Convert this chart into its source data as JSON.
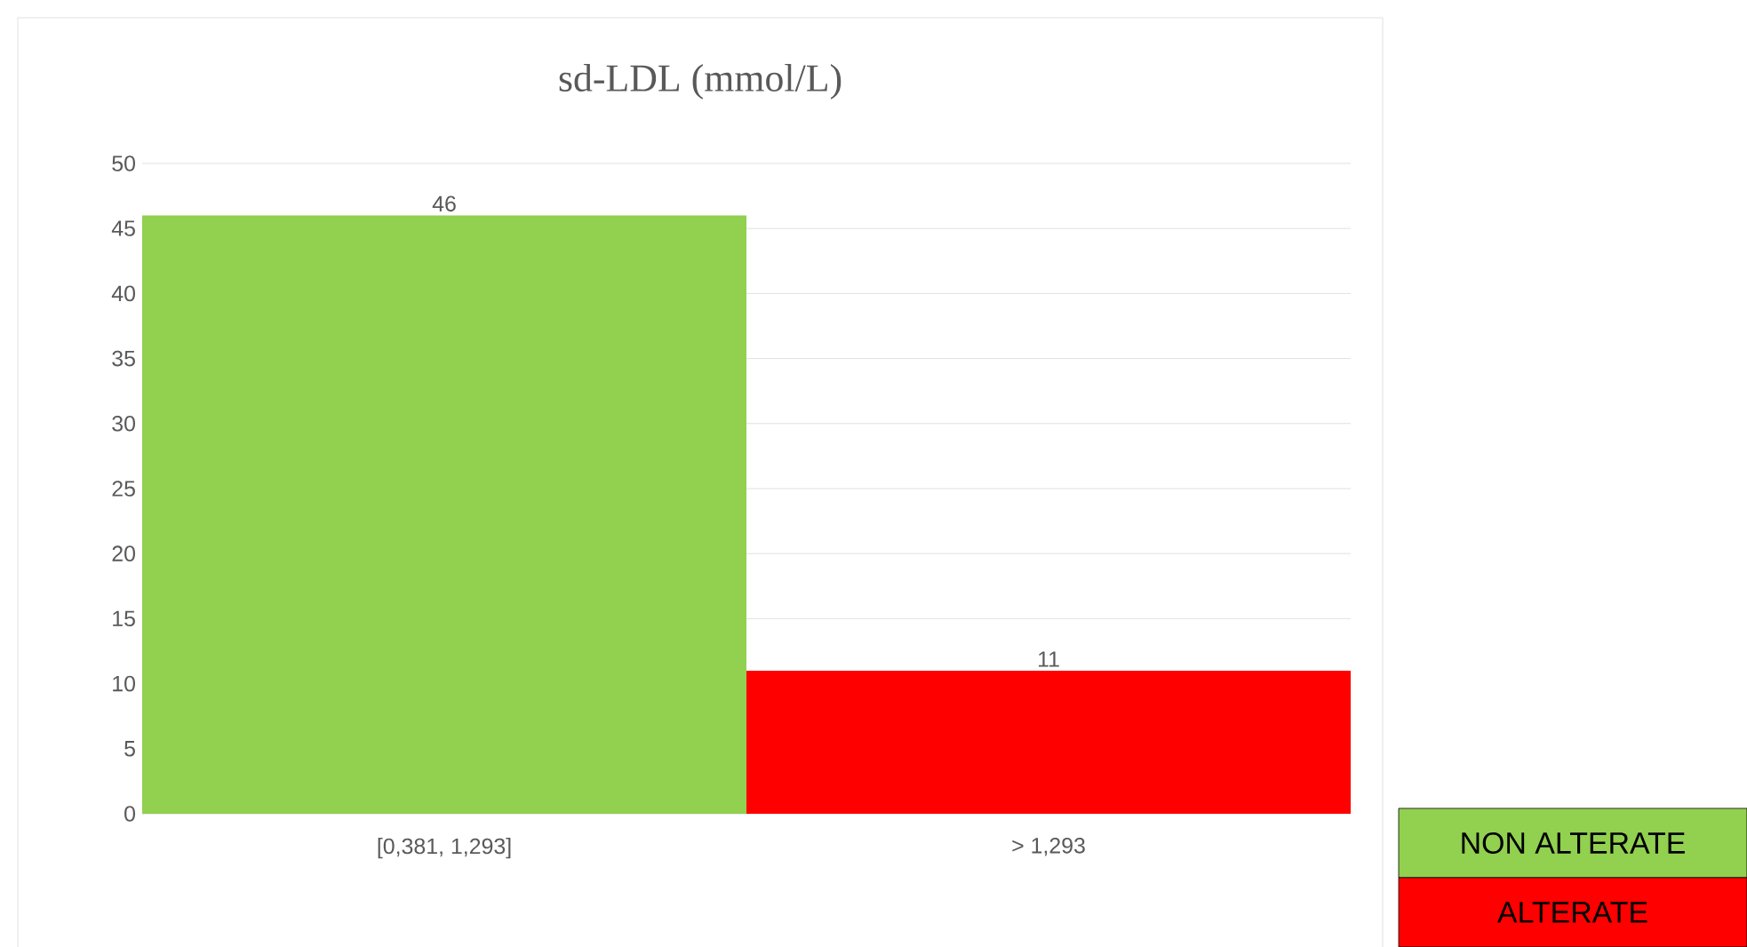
{
  "chart_data": {
    "type": "bar",
    "title": "sd-LDL (mmol/L)",
    "categories": [
      "[0,381, 1,293]",
      "> 1,293"
    ],
    "series": [
      {
        "name": "NON ALTERATE",
        "color": "#92d050",
        "values": [
          46,
          null
        ]
      },
      {
        "name": "ALTERATE",
        "color": "#ff0000",
        "values": [
          null,
          11
        ]
      }
    ],
    "ylim": [
      0,
      50
    ],
    "yticks": [
      0,
      5,
      10,
      15,
      20,
      25,
      30,
      35,
      40,
      45,
      50
    ],
    "grid": "y",
    "legend": "bottom right",
    "data_labels": true
  }
}
